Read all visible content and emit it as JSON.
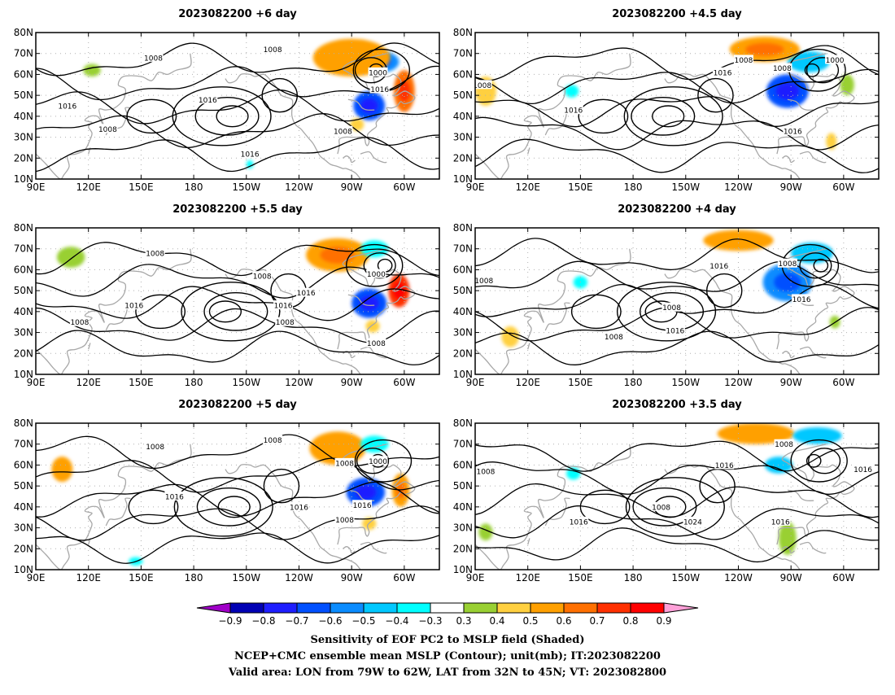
{
  "panels": [
    {
      "title": "2023082200 +6 day",
      "contour_labels": [
        {
          "text": "1008",
          "lon": 157,
          "lat": 68
        },
        {
          "text": "1008",
          "lon": 225,
          "lat": 72
        },
        {
          "text": "1000",
          "lon": 285,
          "lat": 61
        },
        {
          "text": "1016",
          "lon": 286,
          "lat": 53
        },
        {
          "text": "1016",
          "lon": 108,
          "lat": 45
        },
        {
          "text": "1016",
          "lon": 188,
          "lat": 48
        },
        {
          "text": "1008",
          "lon": 131,
          "lat": 34
        },
        {
          "text": "1008",
          "lon": 265,
          "lat": 33
        },
        {
          "text": "1016",
          "lon": 212,
          "lat": 22
        }
      ],
      "shades": [
        {
          "lon": 287,
          "lat": 66,
          "rx": 10,
          "ry": 5,
          "v": -0.55
        },
        {
          "lon": 280,
          "lat": 45,
          "rx": 9,
          "ry": 7,
          "v": -0.62
        },
        {
          "lon": 300,
          "lat": 52,
          "rx": 6,
          "ry": 10,
          "v": 0.68
        },
        {
          "lon": 270,
          "lat": 68,
          "rx": 22,
          "ry": 9,
          "v": 0.5
        },
        {
          "lon": 96,
          "lat": 70,
          "rx": 6,
          "ry": 3,
          "v": 0.3
        },
        {
          "lon": 122,
          "lat": 62,
          "rx": 5,
          "ry": 3,
          "v": 0.35
        },
        {
          "lon": 212,
          "lat": 17,
          "rx": 2,
          "ry": 2,
          "v": -0.35
        },
        {
          "lon": 273,
          "lat": 36,
          "rx": 4,
          "ry": 3,
          "v": 0.45
        }
      ]
    },
    {
      "title": "2023082200 +4.5 day",
      "contour_labels": [
        {
          "text": "1008",
          "lon": 94,
          "lat": 55
        },
        {
          "text": "1008",
          "lon": 243,
          "lat": 67
        },
        {
          "text": "1016",
          "lon": 231,
          "lat": 61
        },
        {
          "text": "1008",
          "lon": 265,
          "lat": 63
        },
        {
          "text": "1000",
          "lon": 295,
          "lat": 67
        },
        {
          "text": "1016",
          "lon": 146,
          "lat": 43
        },
        {
          "text": "1016",
          "lon": 271,
          "lat": 33
        }
      ],
      "shades": [
        {
          "lon": 280,
          "lat": 66,
          "rx": 12,
          "ry": 5,
          "v": -0.5
        },
        {
          "lon": 268,
          "lat": 52,
          "rx": 12,
          "ry": 8,
          "v": -0.65
        },
        {
          "lon": 255,
          "lat": 72,
          "rx": 20,
          "ry": 6,
          "v": 0.55
        },
        {
          "lon": 96,
          "lat": 52,
          "rx": 6,
          "ry": 7,
          "v": 0.45
        },
        {
          "lon": 145,
          "lat": 52,
          "rx": 4,
          "ry": 3,
          "v": -0.35
        },
        {
          "lon": 293,
          "lat": 28,
          "rx": 3,
          "ry": 4,
          "v": 0.4
        },
        {
          "lon": 302,
          "lat": 55,
          "rx": 4,
          "ry": 5,
          "v": 0.35
        }
      ]
    },
    {
      "title": "2023082200 +5.5 day",
      "contour_labels": [
        {
          "text": "1008",
          "lon": 158,
          "lat": 68
        },
        {
          "text": "1008",
          "lon": 219,
          "lat": 57
        },
        {
          "text": "1000",
          "lon": 284,
          "lat": 58
        },
        {
          "text": "1016",
          "lon": 244,
          "lat": 49
        },
        {
          "text": "1016",
          "lon": 146,
          "lat": 43
        },
        {
          "text": "1016",
          "lon": 231,
          "lat": 43
        },
        {
          "text": "1008",
          "lon": 115,
          "lat": 35
        },
        {
          "text": "1008",
          "lon": 232,
          "lat": 35
        },
        {
          "text": "1008",
          "lon": 284,
          "lat": 25
        }
      ],
      "shades": [
        {
          "lon": 280,
          "lat": 44,
          "rx": 10,
          "ry": 7,
          "v": -0.66
        },
        {
          "lon": 297,
          "lat": 50,
          "rx": 6,
          "ry": 8,
          "v": 0.75
        },
        {
          "lon": 262,
          "lat": 67,
          "rx": 18,
          "ry": 8,
          "v": 0.55
        },
        {
          "lon": 283,
          "lat": 70,
          "rx": 8,
          "ry": 4,
          "v": -0.4
        },
        {
          "lon": 110,
          "lat": 66,
          "rx": 8,
          "ry": 5,
          "v": 0.35
        },
        {
          "lon": 95,
          "lat": 40,
          "rx": 5,
          "ry": 8,
          "v": 0.3
        },
        {
          "lon": 282,
          "lat": 33,
          "rx": 4,
          "ry": 3,
          "v": 0.45
        }
      ]
    },
    {
      "title": "2023082200 +4 day",
      "contour_labels": [
        {
          "text": "1008",
          "lon": 95,
          "lat": 55
        },
        {
          "text": "1016",
          "lon": 229,
          "lat": 62
        },
        {
          "text": "1008",
          "lon": 268,
          "lat": 63
        },
        {
          "text": "1016",
          "lon": 276,
          "lat": 46
        },
        {
          "text": "1008",
          "lon": 202,
          "lat": 42
        },
        {
          "text": "1008",
          "lon": 169,
          "lat": 28
        },
        {
          "text": "1016",
          "lon": 204,
          "lat": 31
        }
      ],
      "shades": [
        {
          "lon": 268,
          "lat": 54,
          "rx": 14,
          "ry": 9,
          "v": -0.6
        },
        {
          "lon": 282,
          "lat": 68,
          "rx": 12,
          "ry": 5,
          "v": -0.45
        },
        {
          "lon": 240,
          "lat": 74,
          "rx": 20,
          "ry": 5,
          "v": 0.5
        },
        {
          "lon": 150,
          "lat": 54,
          "rx": 4,
          "ry": 3,
          "v": -0.35
        },
        {
          "lon": 110,
          "lat": 28,
          "rx": 5,
          "ry": 5,
          "v": 0.4
        },
        {
          "lon": 295,
          "lat": 35,
          "rx": 3,
          "ry": 3,
          "v": 0.35
        }
      ]
    },
    {
      "title": "2023082200 +5 day",
      "contour_labels": [
        {
          "text": "1008",
          "lon": 158,
          "lat": 69
        },
        {
          "text": "1008",
          "lon": 225,
          "lat": 72
        },
        {
          "text": "1008",
          "lon": 266,
          "lat": 61
        },
        {
          "text": "1000",
          "lon": 285,
          "lat": 62
        },
        {
          "text": "1016",
          "lon": 169,
          "lat": 45
        },
        {
          "text": "1016",
          "lon": 240,
          "lat": 40
        },
        {
          "text": "1016",
          "lon": 276,
          "lat": 41
        },
        {
          "text": "1008",
          "lon": 266,
          "lat": 34
        }
      ],
      "shades": [
        {
          "lon": 278,
          "lat": 47,
          "rx": 11,
          "ry": 7,
          "v": -0.62
        },
        {
          "lon": 298,
          "lat": 48,
          "rx": 5,
          "ry": 8,
          "v": 0.6
        },
        {
          "lon": 262,
          "lat": 68,
          "rx": 16,
          "ry": 8,
          "v": 0.5
        },
        {
          "lon": 283,
          "lat": 70,
          "rx": 8,
          "ry": 4,
          "v": -0.4
        },
        {
          "lon": 105,
          "lat": 58,
          "rx": 6,
          "ry": 6,
          "v": 0.5
        },
        {
          "lon": 147,
          "lat": 14,
          "rx": 4,
          "ry": 2,
          "v": -0.35
        },
        {
          "lon": 280,
          "lat": 32,
          "rx": 4,
          "ry": 3,
          "v": 0.45
        }
      ]
    },
    {
      "title": "2023082200 +3.5 day",
      "contour_labels": [
        {
          "text": "1008",
          "lon": 96,
          "lat": 57
        },
        {
          "text": "1016",
          "lon": 232,
          "lat": 60
        },
        {
          "text": "1008",
          "lon": 266,
          "lat": 70
        },
        {
          "text": "1016",
          "lon": 311,
          "lat": 58
        },
        {
          "text": "1008",
          "lon": 196,
          "lat": 40
        },
        {
          "text": "1024",
          "lon": 214,
          "lat": 33
        },
        {
          "text": "1016",
          "lon": 149,
          "lat": 33
        },
        {
          "text": "1016",
          "lon": 264,
          "lat": 33
        }
      ],
      "shades": [
        {
          "lon": 250,
          "lat": 75,
          "rx": 22,
          "ry": 5,
          "v": 0.5
        },
        {
          "lon": 285,
          "lat": 74,
          "rx": 14,
          "ry": 4,
          "v": -0.45
        },
        {
          "lon": 263,
          "lat": 60,
          "rx": 8,
          "ry": 4,
          "v": -0.5
        },
        {
          "lon": 146,
          "lat": 56,
          "rx": 4,
          "ry": 3,
          "v": -0.35
        },
        {
          "lon": 268,
          "lat": 25,
          "rx": 5,
          "ry": 8,
          "v": 0.35
        },
        {
          "lon": 96,
          "lat": 28,
          "rx": 4,
          "ry": 4,
          "v": 0.35
        }
      ]
    }
  ],
  "axes": {
    "lon_labels": [
      "90E",
      "120E",
      "150E",
      "180",
      "150W",
      "120W",
      "90W",
      "60W"
    ],
    "lon_values": [
      90,
      120,
      150,
      180,
      210,
      240,
      270,
      300
    ],
    "lon_range": [
      90,
      320
    ],
    "lat_labels": [
      "10N",
      "20N",
      "30N",
      "40N",
      "50N",
      "60N",
      "70N",
      "80N"
    ],
    "lat_values": [
      10,
      20,
      30,
      40,
      50,
      60,
      70,
      80
    ],
    "lat_range": [
      10,
      80
    ]
  },
  "colorbar": {
    "ticks": [
      "-0.9",
      "-0.8",
      "-0.7",
      "-0.6",
      "-0.5",
      "-0.4",
      "-0.3",
      "0.3",
      "0.4",
      "0.5",
      "0.6",
      "0.7",
      "0.8",
      "0.9"
    ],
    "colors": [
      "#a000c8",
      "#0000b4",
      "#1e1eff",
      "#0050ff",
      "#0a8cff",
      "#00c8ff",
      "#00ffff",
      "#ffffff",
      "#99d033",
      "#ffd040",
      "#ffa000",
      "#ff7000",
      "#ff3000",
      "#ff0000",
      "#ffa0d8"
    ]
  },
  "caption": {
    "line1": "Sensitivity of EOF PC2 to MSLP field (Shaded)",
    "line2": "NCEP+CMC ensemble mean MSLP (Contour); unit(mb); IT:2023082200",
    "line3": "Valid area: LON from 79W to 62W, LAT from 32N to 45N; VT: 2023082800"
  },
  "colors": {
    "contour": "#000000",
    "coastline": "#a8a8a8",
    "grid": "#b0b0b0"
  }
}
